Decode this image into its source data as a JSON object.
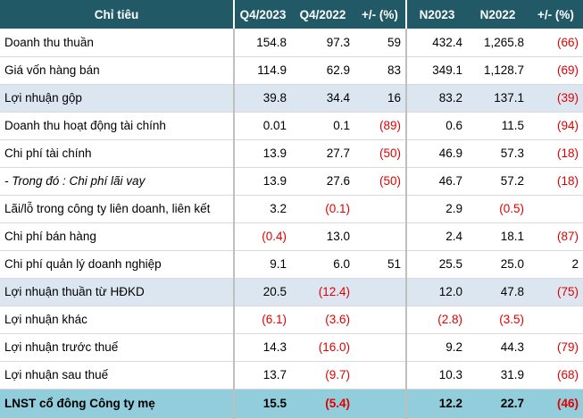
{
  "table": {
    "header": [
      "Chỉ tiêu",
      "Q4/2023",
      "Q4/2022",
      "+/- (%)",
      "N2023",
      "N2022",
      "+/- (%)"
    ],
    "rows": [
      [
        "Doanh thu thuần",
        "154.8",
        "97.3",
        "59",
        "432.4",
        "1,265.8",
        "(66)"
      ],
      [
        "Giá vốn hàng bán",
        "114.9",
        "62.9",
        "83",
        "349.1",
        "1,128.7",
        "(69)"
      ],
      [
        "Lợi nhuận gộp",
        "39.8",
        "34.4",
        "16",
        "83.2",
        "137.1",
        "(39)"
      ],
      [
        "Doanh thu hoạt động tài chính",
        "0.01",
        "0.1",
        "(89)",
        "0.6",
        "11.5",
        "(94)"
      ],
      [
        "Chi phí tài chính",
        "13.9",
        "27.7",
        "(50)",
        "46.9",
        "57.3",
        "(18)"
      ],
      [
        "- Trong đó : Chi phí lãi vay",
        "13.9",
        "27.6",
        "(50)",
        "46.7",
        "57.2",
        "(18)"
      ],
      [
        "Lãi/lỗ trong công ty liên doanh, liên kết",
        "3.2",
        "(0.1)",
        null,
        "2.9",
        "(0.5)",
        null
      ],
      [
        "Chi phí bán hàng",
        "(0.4)",
        "13.0",
        null,
        "2.4",
        "18.1",
        "(87)"
      ],
      [
        "Chi phí quản lý doanh nghiệp",
        "9.1",
        "6.0",
        "51",
        "25.5",
        "25.0",
        "2"
      ],
      [
        "Lợi nhuận thuần từ HĐKD",
        "20.5",
        "(12.4)",
        null,
        "12.0",
        "47.8",
        "(75)"
      ],
      [
        "Lợi nhuận khác",
        "(6.1)",
        "(3.6)",
        null,
        "(2.8)",
        "(3.5)",
        null
      ],
      [
        "Lợi nhuận trước thuế",
        "14.3",
        "(16.0)",
        null,
        "9.2",
        "44.3",
        "(79)"
      ],
      [
        "Lợi nhuận sau thuế",
        "13.7",
        "(9.7)",
        null,
        "10.3",
        "31.9",
        "(68)"
      ],
      [
        "LNST cổ đông Công ty mẹ",
        "15.5",
        "(5.4)",
        null,
        "12.2",
        "22.7",
        "(46)"
      ]
    ]
  }
}
